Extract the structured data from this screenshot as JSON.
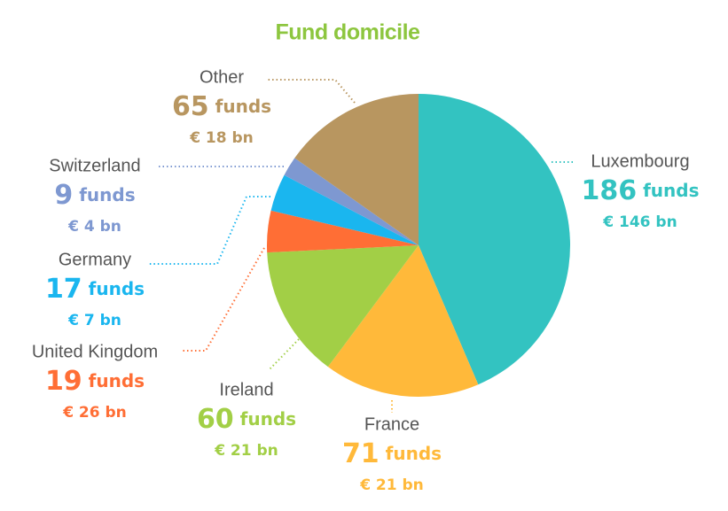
{
  "chart_data": {
    "type": "pie",
    "title": "Fund domicile",
    "categories": [
      "Luxembourg",
      "France",
      "Ireland",
      "United Kingdom",
      "Germany",
      "Switzerland",
      "Other"
    ],
    "values": [
      186,
      71,
      60,
      19,
      17,
      9,
      65
    ],
    "value_labels": [
      "186 funds",
      "71 funds",
      "60 funds",
      "19 funds",
      "17 funds",
      "9 funds",
      "65 funds"
    ],
    "assets": [
      146,
      21,
      21,
      26,
      7,
      4,
      18
    ],
    "asset_labels": [
      "€ 146 bn",
      "€ 21 bn",
      "€ 21 bn",
      "€ 26 bn",
      "€ 7 bn",
      "€ 4 bn",
      "€ 18 bn"
    ],
    "colors": [
      "#33c3c1",
      "#ffb93a",
      "#a2cf46",
      "#ff6e35",
      "#1ab6ef",
      "#7e98d1",
      "#b89660"
    ]
  }
}
